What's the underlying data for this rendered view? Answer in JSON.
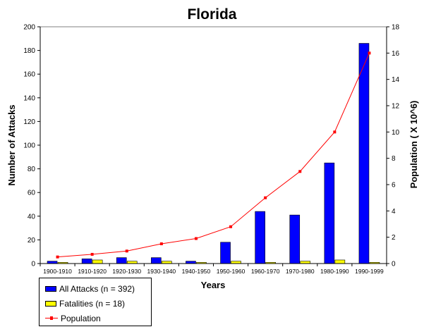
{
  "chart_data": {
    "type": "bar",
    "title": "Florida",
    "xlabel": "Years",
    "ylabel": "Number of Attacks",
    "y2label": "Population ( X 10^6)",
    "categories": [
      "1900-1910",
      "1910-1920",
      "1920-1930",
      "1930-1940",
      "1940-1950",
      "1950-1960",
      "1960-1970",
      "1970-1980",
      "1980-1990",
      "1990-1999"
    ],
    "ylim": [
      0,
      200
    ],
    "yticks": [
      0,
      20,
      40,
      60,
      80,
      100,
      120,
      140,
      160,
      180,
      200
    ],
    "y2lim": [
      0,
      18
    ],
    "y2ticks": [
      0,
      2,
      4,
      6,
      8,
      10,
      12,
      14,
      16,
      18
    ],
    "grid": false,
    "legend_position": "bottom-left",
    "series": [
      {
        "name": "All Attacks (n = 392)",
        "type": "bar",
        "axis": "left",
        "color": "#0000ff",
        "values": [
          2,
          4,
          5,
          5,
          2,
          18,
          44,
          41,
          85,
          186
        ]
      },
      {
        "name": "Fatalities (n = 18)",
        "type": "bar",
        "axis": "left",
        "color": "#ffff00",
        "values": [
          1,
          3,
          2,
          2,
          1,
          2,
          1,
          2,
          3,
          1
        ]
      },
      {
        "name": "Population",
        "type": "line",
        "axis": "right",
        "color": "#ff0000",
        "values": [
          0.5,
          0.7,
          0.95,
          1.5,
          1.9,
          2.8,
          5.0,
          7.0,
          10.0,
          16.0
        ]
      }
    ]
  }
}
